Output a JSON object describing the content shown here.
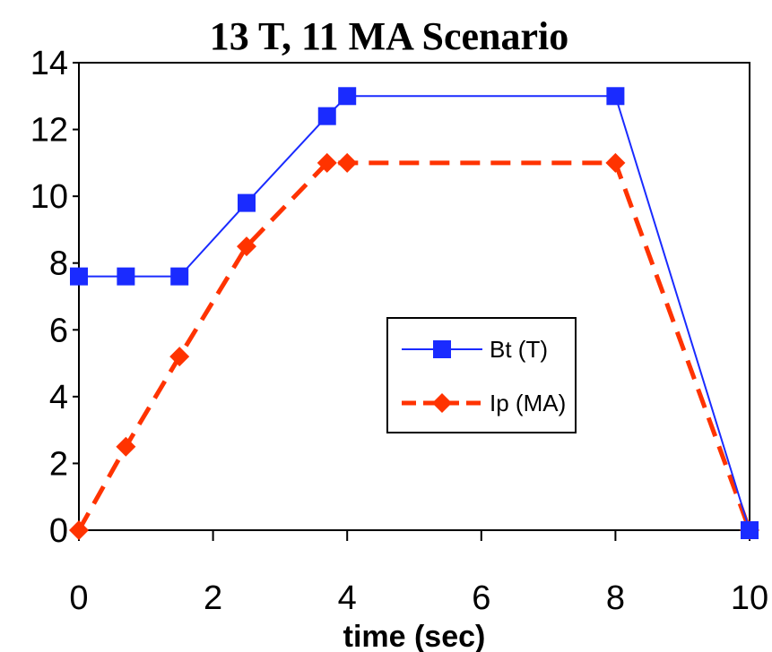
{
  "chart_data": {
    "type": "line",
    "title": "13 T, 11 MA Scenario",
    "xlabel": "time (sec)",
    "ylabel": "",
    "xlim": [
      0,
      10
    ],
    "ylim": [
      0,
      14
    ],
    "x_ticks": [
      "0",
      "2",
      "4",
      "6",
      "8",
      "10"
    ],
    "y_ticks": [
      "0",
      "2",
      "4",
      "6",
      "8",
      "10",
      "12",
      "14"
    ],
    "grid": false,
    "legend_position": "center-right",
    "series": [
      {
        "name": "Bt (T)",
        "color": "#1a2bff",
        "line_style": "solid",
        "marker": "square",
        "x": [
          0,
          0.7,
          1.5,
          2.5,
          3.7,
          4.0,
          8.0,
          10.0
        ],
        "y": [
          7.6,
          7.6,
          7.6,
          9.8,
          12.4,
          13.0,
          13.0,
          0
        ]
      },
      {
        "name": "Ip (MA)",
        "color": "#ff3300",
        "line_style": "dashed",
        "marker": "diamond",
        "x": [
          0,
          0.7,
          1.5,
          2.5,
          3.7,
          4.0,
          8.0,
          10.0
        ],
        "y": [
          0,
          2.5,
          5.2,
          8.5,
          11.0,
          11.0,
          11.0,
          0
        ]
      }
    ]
  }
}
